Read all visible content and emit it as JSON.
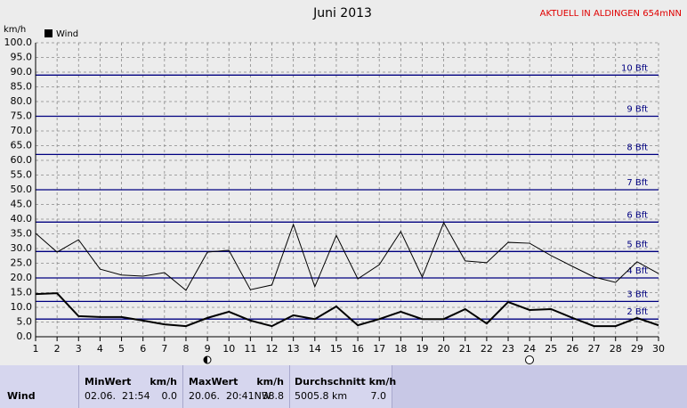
{
  "chart_data": {
    "type": "line",
    "title": "Juni 2013",
    "subtitle": "AKTUELL IN ALDINGEN 654mNN",
    "y_label": "km/h",
    "x": [
      1,
      2,
      3,
      4,
      5,
      6,
      7,
      8,
      9,
      10,
      11,
      12,
      13,
      14,
      15,
      16,
      17,
      18,
      19,
      20,
      21,
      22,
      23,
      24,
      25,
      26,
      27,
      28,
      29,
      30
    ],
    "xlim": [
      1,
      30
    ],
    "xticks": [
      1,
      2,
      3,
      4,
      5,
      6,
      7,
      8,
      9,
      10,
      11,
      12,
      13,
      14,
      15,
      16,
      17,
      18,
      19,
      20,
      21,
      22,
      23,
      24,
      25,
      26,
      27,
      28,
      29,
      30
    ],
    "ylim": [
      0,
      100
    ],
    "yticks": [
      {
        "value": 0,
        "label": "0.0"
      },
      {
        "value": 5,
        "label": "5.0"
      },
      {
        "value": 10,
        "label": "10.0"
      },
      {
        "value": 15,
        "label": "15.0"
      },
      {
        "value": 20,
        "label": "20.0"
      },
      {
        "value": 25,
        "label": "25.0"
      },
      {
        "value": 30,
        "label": "30.0"
      },
      {
        "value": 35,
        "label": "35.0"
      },
      {
        "value": 40,
        "label": "40.0"
      },
      {
        "value": 45,
        "label": "45.0"
      },
      {
        "value": 50,
        "label": "50.0"
      },
      {
        "value": 55,
        "label": "55.0"
      },
      {
        "value": 60,
        "label": "60.0"
      },
      {
        "value": 65,
        "label": "65.0"
      },
      {
        "value": 70,
        "label": "70.0"
      },
      {
        "value": 75,
        "label": "75.0"
      },
      {
        "value": 80,
        "label": "80.0"
      },
      {
        "value": 85,
        "label": "85.0"
      },
      {
        "value": 90,
        "label": "90.0"
      },
      {
        "value": 95,
        "label": "95.0"
      },
      {
        "value": 100,
        "label": "100.0"
      }
    ],
    "grid": true,
    "reference_color": "#000080",
    "reference_lines": [
      {
        "value": 6,
        "label": "2 Bft"
      },
      {
        "value": 12,
        "label": "3 Bft"
      },
      {
        "value": 20,
        "label": "4 Bft"
      },
      {
        "value": 29,
        "label": "5 Bft"
      },
      {
        "value": 39,
        "label": "6 Bft"
      },
      {
        "value": 50,
        "label": "7 Bft"
      },
      {
        "value": 62,
        "label": "8 Bft"
      },
      {
        "value": 75,
        "label": "9 Bft"
      },
      {
        "value": 89,
        "label": "10 Bft"
      }
    ],
    "series": [
      {
        "name": "Wind",
        "color": "#000000",
        "line_width": 2,
        "values": [
          14.5,
          14.8,
          7,
          6.7,
          6.7,
          5.5,
          4.2,
          3.6,
          6.4,
          8.5,
          5.5,
          3.6,
          7.3,
          6,
          10.3,
          3.9,
          6,
          8.5,
          6,
          6,
          9.4,
          4.5,
          11.8,
          9.1,
          9.4,
          6.4,
          3.6,
          3.6,
          6.4,
          3.9
        ]
      },
      {
        "color": "#000000",
        "line_width": 1,
        "values": [
          35.2,
          28.8,
          33,
          23,
          21,
          20.6,
          21.8,
          15.8,
          28.8,
          29.4,
          16,
          17.6,
          38.2,
          17,
          34.5,
          19.7,
          24.5,
          35.8,
          20.3,
          38.8,
          25.8,
          25.2,
          32.1,
          31.8,
          27.6,
          23.9,
          20.3,
          18.5,
          25.5,
          21.5
        ]
      }
    ]
  },
  "summary": {
    "row_label": "Wind",
    "columns": [
      {
        "title": "MinWert",
        "unit": "km/h",
        "info": "02.06.  21:54",
        "value": "0.0"
      },
      {
        "title": "MaxWert",
        "unit": "km/h",
        "info": "20.06.  20:41NW",
        "value": "38.8"
      },
      {
        "title": "Durchschnitt km/h",
        "info": "5005.8 km",
        "value": "7.0"
      }
    ]
  }
}
